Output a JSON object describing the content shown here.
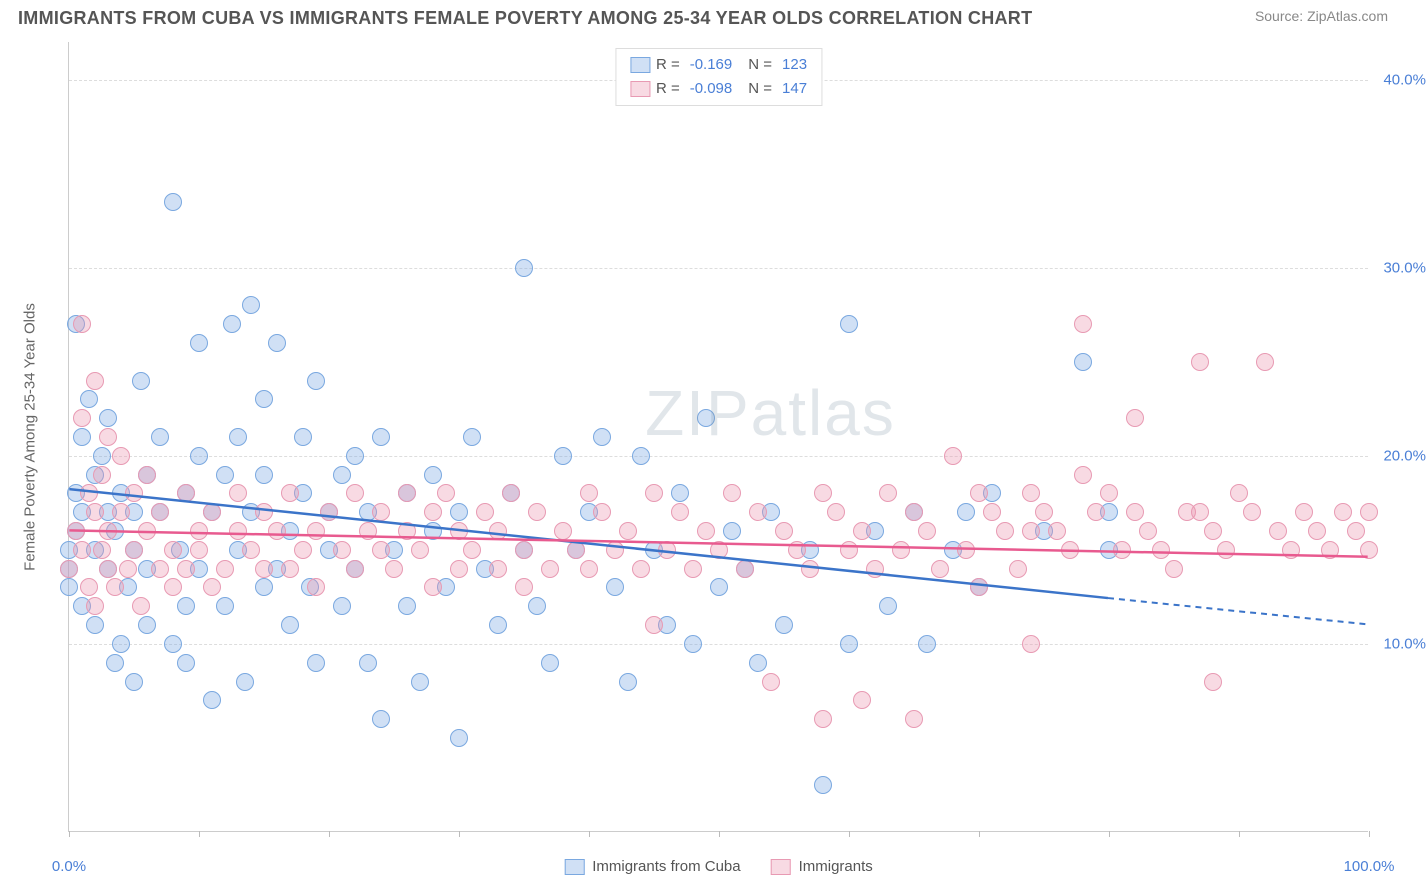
{
  "title": "IMMIGRANTS FROM CUBA VS IMMIGRANTS FEMALE POVERTY AMONG 25-34 YEAR OLDS CORRELATION CHART",
  "source_prefix": "Source: ",
  "source_name": "ZipAtlas.com",
  "watermark": "ZIPatlas",
  "chart": {
    "type": "scatter",
    "ylabel": "Female Poverty Among 25-34 Year Olds",
    "xlim": [
      0,
      100
    ],
    "ylim": [
      0,
      42
    ],
    "x_ticks": [
      0,
      10,
      20,
      30,
      40,
      50,
      60,
      70,
      80,
      90,
      100
    ],
    "x_tick_labels": {
      "0": "0.0%",
      "100": "100.0%"
    },
    "y_ticks": [
      10,
      20,
      30,
      40
    ],
    "y_tick_labels": {
      "10": "10.0%",
      "20": "20.0%",
      "30": "30.0%",
      "40": "40.0%"
    },
    "grid_color": "#dddddd",
    "axis_color": "#cccccc",
    "tick_label_color": "#4a7fd6",
    "background_color": "#ffffff",
    "marker_radius": 9,
    "marker_stroke_width": 1.5,
    "series": [
      {
        "id": "cuba",
        "label": "Immigrants from Cuba",
        "fill": "rgba(120,165,225,0.35)",
        "stroke": "#7aa8e0",
        "line_stroke": "#3b74c9",
        "line_width": 2.5,
        "R": "-0.169",
        "N": "123",
        "trend": {
          "x1": 0,
          "y1": 18.2,
          "x2": 80,
          "y2": 12.4,
          "ext_x2": 100,
          "ext_y2": 11.0
        },
        "points": [
          [
            0,
            15
          ],
          [
            0,
            14
          ],
          [
            0,
            13
          ],
          [
            0.5,
            16
          ],
          [
            0.5,
            18
          ],
          [
            0.5,
            27
          ],
          [
            1,
            17
          ],
          [
            1,
            21
          ],
          [
            1,
            12
          ],
          [
            1.5,
            23
          ],
          [
            2,
            15
          ],
          [
            2,
            19
          ],
          [
            2,
            11
          ],
          [
            2.5,
            20
          ],
          [
            3,
            17
          ],
          [
            3,
            14
          ],
          [
            3,
            22
          ],
          [
            3.5,
            9
          ],
          [
            3.5,
            16
          ],
          [
            4,
            18
          ],
          [
            4,
            10
          ],
          [
            4.5,
            13
          ],
          [
            5,
            17
          ],
          [
            5,
            15
          ],
          [
            5,
            8
          ],
          [
            5.5,
            24
          ],
          [
            6,
            19
          ],
          [
            6,
            14
          ],
          [
            6,
            11
          ],
          [
            7,
            17
          ],
          [
            7,
            21
          ],
          [
            8,
            10
          ],
          [
            8,
            33.5
          ],
          [
            8.5,
            15
          ],
          [
            9,
            18
          ],
          [
            9,
            12
          ],
          [
            9,
            9
          ],
          [
            10,
            26
          ],
          [
            10,
            14
          ],
          [
            10,
            20
          ],
          [
            11,
            17
          ],
          [
            11,
            7
          ],
          [
            12,
            19
          ],
          [
            12,
            12
          ],
          [
            12.5,
            27
          ],
          [
            13,
            21
          ],
          [
            13,
            15
          ],
          [
            13.5,
            8
          ],
          [
            14,
            28
          ],
          [
            14,
            17
          ],
          [
            15,
            13
          ],
          [
            15,
            19
          ],
          [
            15,
            23
          ],
          [
            16,
            14
          ],
          [
            16,
            26
          ],
          [
            17,
            16
          ],
          [
            17,
            11
          ],
          [
            18,
            18
          ],
          [
            18,
            21
          ],
          [
            18.5,
            13
          ],
          [
            19,
            24
          ],
          [
            19,
            9
          ],
          [
            20,
            15
          ],
          [
            20,
            17
          ],
          [
            21,
            19
          ],
          [
            21,
            12
          ],
          [
            22,
            20
          ],
          [
            22,
            14
          ],
          [
            23,
            17
          ],
          [
            23,
            9
          ],
          [
            24,
            21
          ],
          [
            24,
            6
          ],
          [
            25,
            15
          ],
          [
            26,
            18
          ],
          [
            26,
            12
          ],
          [
            27,
            8
          ],
          [
            28,
            16
          ],
          [
            28,
            19
          ],
          [
            29,
            13
          ],
          [
            30,
            17
          ],
          [
            30,
            5
          ],
          [
            31,
            21
          ],
          [
            32,
            14
          ],
          [
            33,
            11
          ],
          [
            34,
            18
          ],
          [
            35,
            30
          ],
          [
            35,
            15
          ],
          [
            36,
            12
          ],
          [
            37,
            9
          ],
          [
            38,
            20
          ],
          [
            39,
            15
          ],
          [
            40,
            17
          ],
          [
            41,
            21
          ],
          [
            42,
            13
          ],
          [
            43,
            8
          ],
          [
            44,
            20
          ],
          [
            45,
            15
          ],
          [
            46,
            11
          ],
          [
            47,
            18
          ],
          [
            48,
            10
          ],
          [
            49,
            22
          ],
          [
            50,
            13
          ],
          [
            51,
            16
          ],
          [
            52,
            14
          ],
          [
            53,
            9
          ],
          [
            54,
            17
          ],
          [
            55,
            11
          ],
          [
            57,
            15
          ],
          [
            58,
            2.5
          ],
          [
            60,
            10
          ],
          [
            60,
            27
          ],
          [
            62,
            16
          ],
          [
            63,
            12
          ],
          [
            65,
            17
          ],
          [
            66,
            10
          ],
          [
            68,
            15
          ],
          [
            69,
            17
          ],
          [
            70,
            13
          ],
          [
            71,
            18
          ],
          [
            75,
            16
          ],
          [
            78,
            25
          ],
          [
            80,
            15
          ],
          [
            80,
            17
          ]
        ]
      },
      {
        "id": "immigrants",
        "label": "Immigrants",
        "fill": "rgba(235,150,175,0.35)",
        "stroke": "#e89ab3",
        "line_stroke": "#e85a8f",
        "line_width": 2.5,
        "R": "-0.098",
        "N": "147",
        "trend": {
          "x1": 0,
          "y1": 16.0,
          "x2": 100,
          "y2": 14.6
        },
        "points": [
          [
            0,
            14
          ],
          [
            0.5,
            16
          ],
          [
            1,
            22
          ],
          [
            1,
            15
          ],
          [
            1,
            27
          ],
          [
            1.5,
            18
          ],
          [
            1.5,
            13
          ],
          [
            2,
            24
          ],
          [
            2,
            17
          ],
          [
            2,
            12
          ],
          [
            2.5,
            15
          ],
          [
            2.5,
            19
          ],
          [
            3,
            21
          ],
          [
            3,
            14
          ],
          [
            3,
            16
          ],
          [
            3.5,
            13
          ],
          [
            4,
            17
          ],
          [
            4,
            20
          ],
          [
            4.5,
            14
          ],
          [
            5,
            18
          ],
          [
            5,
            15
          ],
          [
            5.5,
            12
          ],
          [
            6,
            16
          ],
          [
            6,
            19
          ],
          [
            7,
            14
          ],
          [
            7,
            17
          ],
          [
            8,
            15
          ],
          [
            8,
            13
          ],
          [
            9,
            18
          ],
          [
            9,
            14
          ],
          [
            10,
            16
          ],
          [
            10,
            15
          ],
          [
            11,
            17
          ],
          [
            11,
            13
          ],
          [
            12,
            14
          ],
          [
            13,
            16
          ],
          [
            13,
            18
          ],
          [
            14,
            15
          ],
          [
            15,
            17
          ],
          [
            15,
            14
          ],
          [
            16,
            16
          ],
          [
            17,
            18
          ],
          [
            17,
            14
          ],
          [
            18,
            15
          ],
          [
            19,
            16
          ],
          [
            19,
            13
          ],
          [
            20,
            17
          ],
          [
            21,
            15
          ],
          [
            22,
            18
          ],
          [
            22,
            14
          ],
          [
            23,
            16
          ],
          [
            24,
            15
          ],
          [
            24,
            17
          ],
          [
            25,
            14
          ],
          [
            26,
            18
          ],
          [
            26,
            16
          ],
          [
            27,
            15
          ],
          [
            28,
            17
          ],
          [
            28,
            13
          ],
          [
            29,
            18
          ],
          [
            30,
            14
          ],
          [
            30,
            16
          ],
          [
            31,
            15
          ],
          [
            32,
            17
          ],
          [
            33,
            14
          ],
          [
            33,
            16
          ],
          [
            34,
            18
          ],
          [
            35,
            15
          ],
          [
            35,
            13
          ],
          [
            36,
            17
          ],
          [
            37,
            14
          ],
          [
            38,
            16
          ],
          [
            39,
            15
          ],
          [
            40,
            18
          ],
          [
            40,
            14
          ],
          [
            41,
            17
          ],
          [
            42,
            15
          ],
          [
            43,
            16
          ],
          [
            44,
            14
          ],
          [
            45,
            18
          ],
          [
            45,
            11
          ],
          [
            46,
            15
          ],
          [
            47,
            17
          ],
          [
            48,
            14
          ],
          [
            49,
            16
          ],
          [
            50,
            15
          ],
          [
            51,
            18
          ],
          [
            52,
            14
          ],
          [
            53,
            17
          ],
          [
            54,
            8
          ],
          [
            55,
            16
          ],
          [
            56,
            15
          ],
          [
            57,
            14
          ],
          [
            58,
            18
          ],
          [
            58,
            6
          ],
          [
            59,
            17
          ],
          [
            60,
            15
          ],
          [
            61,
            16
          ],
          [
            61,
            7
          ],
          [
            62,
            14
          ],
          [
            63,
            18
          ],
          [
            64,
            15
          ],
          [
            65,
            17
          ],
          [
            65,
            6
          ],
          [
            66,
            16
          ],
          [
            67,
            14
          ],
          [
            68,
            20
          ],
          [
            69,
            15
          ],
          [
            70,
            18
          ],
          [
            70,
            13
          ],
          [
            71,
            17
          ],
          [
            72,
            16
          ],
          [
            73,
            14
          ],
          [
            74,
            18
          ],
          [
            74,
            10
          ],
          [
            75,
            17
          ],
          [
            76,
            16
          ],
          [
            77,
            15
          ],
          [
            78,
            19
          ],
          [
            78,
            27
          ],
          [
            79,
            17
          ],
          [
            80,
            18
          ],
          [
            81,
            15
          ],
          [
            82,
            17
          ],
          [
            82,
            22
          ],
          [
            83,
            16
          ],
          [
            84,
            15
          ],
          [
            85,
            14
          ],
          [
            86,
            17
          ],
          [
            87,
            25
          ],
          [
            88,
            16
          ],
          [
            88,
            8
          ],
          [
            89,
            15
          ],
          [
            90,
            18
          ],
          [
            91,
            17
          ],
          [
            92,
            25
          ],
          [
            93,
            16
          ],
          [
            94,
            15
          ],
          [
            95,
            17
          ],
          [
            96,
            16
          ],
          [
            97,
            15
          ],
          [
            98,
            17
          ],
          [
            99,
            16
          ],
          [
            100,
            15
          ],
          [
            100,
            17
          ],
          [
            87,
            17
          ],
          [
            74,
            16
          ]
        ]
      }
    ]
  }
}
